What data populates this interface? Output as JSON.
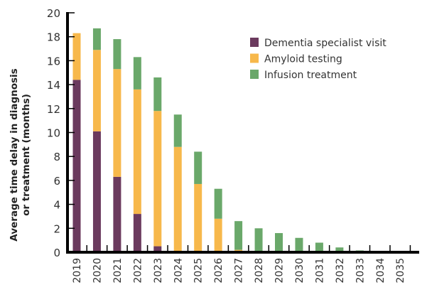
{
  "chart_data": {
    "type": "bar",
    "stacked": true,
    "title": "",
    "xlabel": "",
    "ylabel": "Average time delay in diagnosis or treatment (months)",
    "ylabel_lines": [
      "Average time delay in diagnosis",
      "or treatment (months)"
    ],
    "ylim": [
      0,
      20
    ],
    "yticks": [
      0,
      2,
      4,
      6,
      8,
      10,
      12,
      14,
      16,
      18,
      20
    ],
    "grid": false,
    "legend_position": "top-right",
    "categories": [
      "2019",
      "2020",
      "2021",
      "2022",
      "2023",
      "2024",
      "2025",
      "2026",
      "2027",
      "2028",
      "2029",
      "2030",
      "2031",
      "2032",
      "2033",
      "2034",
      "2035"
    ],
    "series": [
      {
        "name": "Dementia specialist visit",
        "color": "#6b3a5e",
        "values": [
          14.4,
          10.1,
          6.3,
          3.2,
          0.5,
          0,
          0,
          0,
          0,
          0,
          0,
          0,
          0,
          0,
          0,
          0,
          0
        ]
      },
      {
        "name": "Amyloid testing",
        "color": "#f7b84b",
        "values": [
          3.9,
          6.8,
          9.0,
          10.4,
          11.3,
          8.8,
          5.7,
          2.8,
          0.2,
          0,
          0,
          0,
          0,
          0,
          0,
          0,
          0
        ]
      },
      {
        "name": "Infusion treatment",
        "color": "#6aa86a",
        "values": [
          0,
          1.8,
          2.5,
          2.7,
          2.8,
          2.7,
          2.7,
          2.5,
          2.4,
          2.0,
          1.6,
          1.2,
          0.8,
          0.4,
          0.15,
          0,
          0
        ]
      }
    ]
  }
}
